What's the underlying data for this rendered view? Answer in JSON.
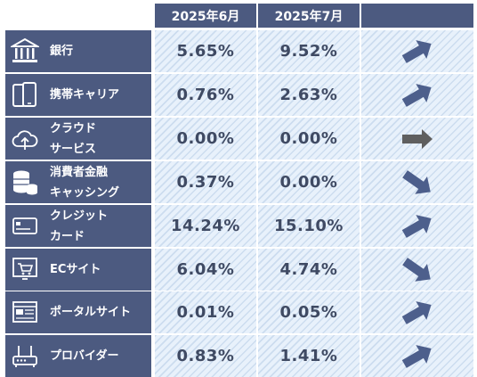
{
  "chart_data": {
    "type": "table",
    "columns": [
      "2025年6月",
      "2025年7月",
      ""
    ],
    "rows": [
      {
        "label": "銀行",
        "jun": "5.65%",
        "jul": "9.52%",
        "trend": "up",
        "icon": "bank-icon"
      },
      {
        "label": "携帯キャリア",
        "jun": "0.76%",
        "jul": "2.63%",
        "trend": "up",
        "icon": "mobile-phone-icon"
      },
      {
        "label": "クラウド\nサービス",
        "jun": "0.00%",
        "jul": "0.00%",
        "trend": "flat",
        "icon": "cloud-upload-icon"
      },
      {
        "label": "消費者金融\nキャッシング",
        "jun": "0.37%",
        "jul": "0.00%",
        "trend": "down",
        "icon": "coins-icon"
      },
      {
        "label": "クレジット\nカード",
        "jun": "14.24%",
        "jul": "15.10%",
        "trend": "up",
        "icon": "credit-card-icon"
      },
      {
        "label": "ECサイト",
        "jun": "6.04%",
        "jul": "4.74%",
        "trend": "down",
        "icon": "shopping-cart-icon"
      },
      {
        "label": "ポータルサイト",
        "jun": "0.01%",
        "jul": "0.05%",
        "trend": "up",
        "icon": "web-browser-icon"
      },
      {
        "label": "プロバイダー",
        "jun": "0.83%",
        "jul": "1.41%",
        "trend": "up",
        "icon": "router-icon"
      }
    ]
  },
  "colors": {
    "header_bg": "#4c5a80",
    "label_bg": "#4c5a80",
    "value_text": "#3f4a63",
    "arrow_blue": "#4d5f8c",
    "arrow_gray": "#5f5f5f"
  }
}
